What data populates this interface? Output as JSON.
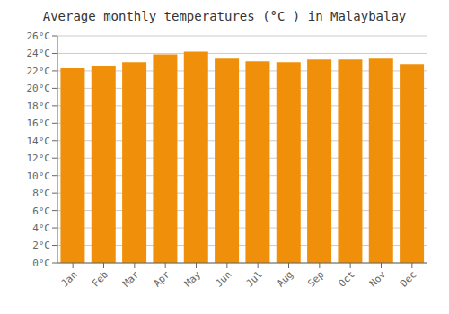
{
  "chart_data": {
    "type": "bar",
    "title": "Average monthly temperatures (°C ) in Malaybalay",
    "categories": [
      "Jan",
      "Feb",
      "Mar",
      "Apr",
      "May",
      "Jun",
      "Jul",
      "Aug",
      "Sep",
      "Oct",
      "Nov",
      "Dec"
    ],
    "values": [
      22.3,
      22.5,
      23.0,
      23.9,
      24.2,
      23.4,
      23.1,
      23.0,
      23.3,
      23.3,
      23.4,
      22.8
    ],
    "color": "#F0900A",
    "ylim": [
      0,
      26
    ],
    "yticks": [
      {
        "value": 0,
        "label": "0°C"
      },
      {
        "value": 2,
        "label": "2°C"
      },
      {
        "value": 4,
        "label": "4°C"
      },
      {
        "value": 6,
        "label": "6°C"
      },
      {
        "value": 8,
        "label": "8°C"
      },
      {
        "value": 10,
        "label": "10°C"
      },
      {
        "value": 12,
        "label": "12°C"
      },
      {
        "value": 14,
        "label": "14°C"
      },
      {
        "value": 16,
        "label": "16°C"
      },
      {
        "value": 18,
        "label": "18°C"
      },
      {
        "value": 20,
        "label": "20°C"
      },
      {
        "value": 22,
        "label": "22°C"
      },
      {
        "value": 24,
        "label": "24°C"
      },
      {
        "value": 26,
        "label": "26°C"
      }
    ],
    "grid": true
  }
}
